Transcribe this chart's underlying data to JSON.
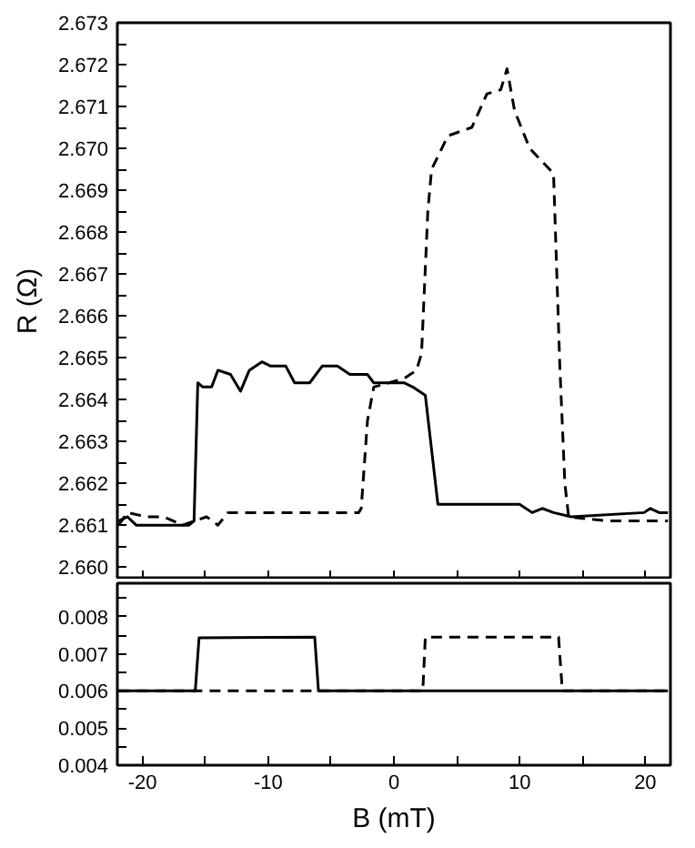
{
  "chart_data": [
    {
      "type": "line",
      "ylabel": "R (Ω)",
      "xlim": [
        -22,
        22
      ],
      "ylim": [
        2.6597,
        2.673
      ],
      "tick_labels": "y",
      "grid": false,
      "xticks": [
        {
          "value": -20,
          "label": null
        },
        {
          "value": -15,
          "label": null
        },
        {
          "value": -10,
          "label": null
        },
        {
          "value": -5,
          "label": null
        },
        {
          "value": 0,
          "label": null
        },
        {
          "value": 5,
          "label": null
        },
        {
          "value": 10,
          "label": null
        },
        {
          "value": 15,
          "label": null
        },
        {
          "value": 20,
          "label": null
        }
      ],
      "yticks": [
        {
          "value": 2.66,
          "label": "2.660"
        },
        {
          "value": 2.6605,
          "label": null
        },
        2.661,
        {
          "value": 2.6615,
          "label": null
        },
        2.662,
        {
          "value": 2.6625,
          "label": null
        },
        2.663,
        {
          "value": 2.6635,
          "label": null
        },
        2.664,
        {
          "value": 2.6645,
          "label": null
        },
        2.665,
        {
          "value": 2.6655,
          "label": null
        },
        2.666,
        {
          "value": 2.6665,
          "label": null
        },
        2.667,
        {
          "value": 2.6675,
          "label": null
        },
        2.668,
        {
          "value": 2.6685,
          "label": null
        },
        2.669,
        {
          "value": 2.6695,
          "label": null
        },
        {
          "value": 2.67,
          "label": "2.670"
        },
        {
          "value": 2.6705,
          "label": null
        },
        2.671,
        {
          "value": 2.6715,
          "label": null
        },
        2.672,
        {
          "value": 2.6725,
          "label": null
        },
        2.673
      ],
      "series": [
        {
          "color": "#000000",
          "line_style": "solid",
          "x": [
            -21.9,
            -21.2,
            -20.5,
            -16.3,
            -15.9,
            -15.6,
            -15.2,
            -14.5,
            -14.0,
            -13.0,
            -12.2,
            -11.5,
            -10.5,
            -9.8,
            -8.6,
            -7.9,
            -6.7,
            -5.7,
            -4.5,
            -3.5,
            -2.1,
            -1.6,
            0.8,
            1.5,
            2.5,
            3.0,
            3.5,
            10.0,
            11.0,
            11.8,
            12.7,
            14.1,
            19.9,
            20.4,
            21.1,
            21.8
          ],
          "values": [
            2.6611,
            2.6612,
            2.661,
            2.661,
            2.6611,
            2.6644,
            2.6643,
            2.6643,
            2.6647,
            2.6646,
            2.6642,
            2.6647,
            2.6649,
            2.6648,
            2.6648,
            2.6644,
            2.6644,
            2.6648,
            2.6648,
            2.6646,
            2.6646,
            2.6644,
            2.6644,
            2.6643,
            2.6641,
            2.6628,
            2.6615,
            2.6615,
            2.6613,
            2.6614,
            2.6613,
            2.6612,
            2.6613,
            2.6614,
            2.6613,
            2.6613
          ]
        },
        {
          "color": "#000000",
          "line_style": "dashed",
          "x": [
            -21.9,
            -21.2,
            -19.7,
            -18.3,
            -16.8,
            -14.9,
            -14.0,
            -13.2,
            -7.2,
            -2.8,
            -2.6,
            -2.1,
            -1.6,
            -0.4,
            0.8,
            1.8,
            2.2,
            2.7,
            3.0,
            4.3,
            6.2,
            7.4,
            8.5,
            9.0,
            9.6,
            10.8,
            12.7,
            13.2,
            13.6,
            13.9,
            17.0,
            21.8
          ],
          "values": [
            2.661,
            2.6613,
            2.6612,
            2.6612,
            2.661,
            2.6612,
            2.661,
            2.6613,
            2.6613,
            2.6613,
            2.6614,
            2.6635,
            2.6643,
            2.6644,
            2.6645,
            2.6647,
            2.6651,
            2.6685,
            2.6695,
            2.6703,
            2.6705,
            2.6713,
            2.6714,
            2.6719,
            2.6709,
            2.67,
            2.6694,
            2.6648,
            2.662,
            2.6612,
            2.6611,
            2.6611
          ]
        }
      ]
    },
    {
      "type": "line",
      "xlabel": "B (mT)",
      "xlim": [
        -22,
        22
      ],
      "ylim": [
        0.004,
        0.0089
      ],
      "grid": false,
      "xticks": [
        -20,
        {
          "value": -15,
          "label": null
        },
        -10,
        {
          "value": -5,
          "label": null
        },
        0,
        {
          "value": 5,
          "label": null
        },
        10,
        {
          "value": 15,
          "label": null
        },
        20
      ],
      "yticks": [
        0.004,
        {
          "value": 0.0045,
          "label": null
        },
        0.005,
        {
          "value": 0.0055,
          "label": null
        },
        0.006,
        {
          "value": 0.0065,
          "label": null
        },
        0.007,
        {
          "value": 0.0075,
          "label": null
        },
        0.008,
        {
          "value": 0.0085,
          "label": null
        }
      ],
      "series": [
        {
          "color": "#000000",
          "line_style": "solid",
          "x": [
            -21.9,
            -15.8,
            -15.5,
            -6.3,
            -6.0,
            21.8
          ],
          "values": [
            0.006,
            0.006,
            0.00743,
            0.00745,
            0.006,
            0.006
          ]
        },
        {
          "color": "#000000",
          "line_style": "dashed",
          "x": [
            -21.9,
            2.3,
            2.5,
            13.1,
            13.4,
            21.8
          ],
          "values": [
            0.006,
            0.006,
            0.00745,
            0.00745,
            0.006,
            0.006
          ]
        }
      ]
    }
  ]
}
